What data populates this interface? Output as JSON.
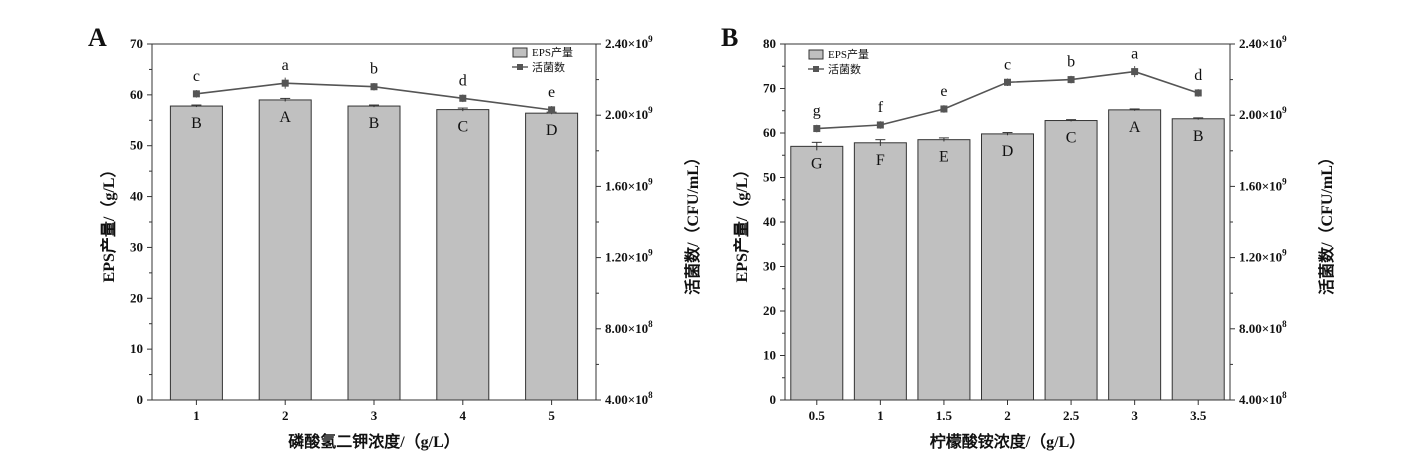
{
  "chart_data": [
    {
      "panel": "A",
      "type": "bar+line",
      "xlabel": "磷酸氢二钾浓度/（g/L）",
      "ylabel": "EPS产量/（g/L）",
      "y2label": "活菌数/（CFU/mL）",
      "categories": [
        "1",
        "2",
        "3",
        "4",
        "5"
      ],
      "ylim": [
        0,
        70
      ],
      "yticks": [
        "0",
        "10",
        "20",
        "30",
        "40",
        "50",
        "60",
        "70"
      ],
      "y2lim": [
        400000000,
        2400000000
      ],
      "y2ticks": [
        {
          "value": 400000000,
          "mantissa": "4.00×10",
          "exp": "8"
        },
        {
          "value": 800000000,
          "mantissa": "8.00×10",
          "exp": "8"
        },
        {
          "value": 1200000000,
          "mantissa": "1.20×10",
          "exp": "9"
        },
        {
          "value": 1600000000,
          "mantissa": "1.60×10",
          "exp": "9"
        },
        {
          "value": 2000000000,
          "mantissa": "2.00×10",
          "exp": "9"
        },
        {
          "value": 2400000000,
          "mantissa": "2.40×10",
          "exp": "9"
        }
      ],
      "legend": {
        "bar": "EPS产量",
        "line": "活菌数",
        "position": "top-right"
      },
      "series": [
        {
          "name": "EPS产量",
          "kind": "bar",
          "values": [
            57.8,
            59.0,
            57.8,
            57.1,
            56.4
          ],
          "errors": [
            0.2,
            0.3,
            0.2,
            0.3,
            0.2
          ],
          "labels": [
            "B",
            "A",
            "B",
            "C",
            "D"
          ],
          "color": "#c0c0c0"
        },
        {
          "name": "活菌数",
          "kind": "line",
          "values": [
            2120000000,
            2180000000,
            2160000000,
            2095000000,
            2030000000
          ],
          "errors": [
            10000000,
            20000000,
            10000000,
            10000000,
            10000000
          ],
          "labels": [
            "c",
            "a",
            "b",
            "d",
            "e"
          ],
          "color": "#555555"
        }
      ]
    },
    {
      "panel": "B",
      "type": "bar+line",
      "xlabel": "柠檬酸铵浓度/（g/L）",
      "ylabel": "EPS产量/（g/L）",
      "y2label": "活菌数/（CFU/mL）",
      "categories": [
        "0.5",
        "1",
        "1.5",
        "2",
        "2.5",
        "3",
        "3.5"
      ],
      "ylim": [
        0,
        80
      ],
      "yticks": [
        "0",
        "10",
        "20",
        "30",
        "40",
        "50",
        "60",
        "70",
        "80"
      ],
      "y2lim": [
        400000000,
        2400000000
      ],
      "y2ticks": [
        {
          "value": 400000000,
          "mantissa": "4.00×10",
          "exp": "8"
        },
        {
          "value": 800000000,
          "mantissa": "8.00×10",
          "exp": "8"
        },
        {
          "value": 1200000000,
          "mantissa": "1.20×10",
          "exp": "9"
        },
        {
          "value": 1600000000,
          "mantissa": "1.60×10",
          "exp": "9"
        },
        {
          "value": 2000000000,
          "mantissa": "2.00×10",
          "exp": "9"
        },
        {
          "value": 2400000000,
          "mantissa": "2.40×10",
          "exp": "9"
        }
      ],
      "legend": {
        "bar": "EPS产量",
        "line": "活菌数",
        "position": "top-left"
      },
      "series": [
        {
          "name": "EPS产量",
          "kind": "bar",
          "values": [
            57.0,
            57.8,
            58.5,
            59.8,
            62.8,
            65.2,
            63.2
          ],
          "errors": [
            0.9,
            0.7,
            0.4,
            0.3,
            0.2,
            0.2,
            0.2
          ],
          "labels": [
            "G",
            "F",
            "E",
            "D",
            "C",
            "A",
            "B"
          ],
          "color": "#c0c0c0"
        },
        {
          "name": "活菌数",
          "kind": "line",
          "values": [
            1925000000,
            1945000000,
            2035000000,
            2185000000,
            2200000000,
            2245000000,
            2125000000
          ],
          "errors": [
            10000000,
            10000000,
            10000000,
            10000000,
            10000000,
            20000000,
            10000000
          ],
          "labels": [
            "g",
            "f",
            "e",
            "c",
            "b",
            "a",
            "d"
          ],
          "color": "#555555"
        }
      ]
    }
  ]
}
